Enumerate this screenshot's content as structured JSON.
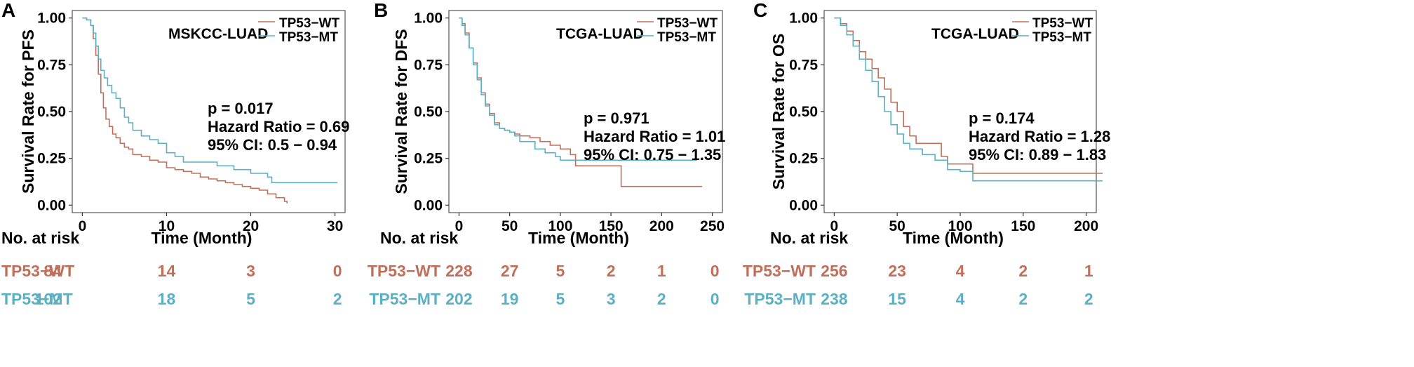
{
  "colors": {
    "wt": "#c0705a",
    "mt": "#5bb0c4",
    "frame": "#555555"
  },
  "chart_data": [
    {
      "type": "line",
      "panel": "A",
      "title": "MSKCC-LUAD",
      "xlabel": "Time (Month)",
      "ylabel": "Survival Rate for PFS",
      "xlim": [
        0,
        30
      ],
      "ylim": [
        0,
        1
      ],
      "xticks": [
        0,
        10,
        20,
        30
      ],
      "yticks": [
        "0.00",
        "0.25",
        "0.50",
        "0.75",
        "1.00"
      ],
      "legend": [
        "TP53−WT",
        "TP53−MT"
      ],
      "annotations": [
        "p = 0.017",
        "Hazard Ratio = 0.69",
        "95% CI: 0.5 − 0.94"
      ],
      "series": [
        {
          "name": "TP53−WT",
          "x": [
            0,
            0.5,
            1,
            1.3,
            1.6,
            1.9,
            2.2,
            2.5,
            2.8,
            3.2,
            3.6,
            4,
            4.5,
            5,
            5.5,
            6,
            7,
            8,
            9,
            10,
            11,
            12,
            13,
            14,
            15,
            16,
            17,
            18,
            19,
            20,
            21,
            22,
            23,
            24,
            24.3
          ],
          "y": [
            1,
            0.99,
            0.96,
            0.89,
            0.8,
            0.7,
            0.6,
            0.52,
            0.46,
            0.42,
            0.38,
            0.36,
            0.33,
            0.31,
            0.3,
            0.27,
            0.26,
            0.24,
            0.23,
            0.2,
            0.19,
            0.18,
            0.17,
            0.15,
            0.14,
            0.13,
            0.12,
            0.11,
            0.1,
            0.09,
            0.08,
            0.06,
            0.04,
            0.02,
            0.01
          ]
        },
        {
          "name": "TP53−MT",
          "x": [
            0,
            0.5,
            1,
            1.3,
            1.6,
            1.9,
            2.2,
            2.6,
            3,
            3.5,
            4,
            4.5,
            5,
            5.5,
            6,
            7,
            8,
            9,
            10,
            11,
            12,
            14,
            16,
            18,
            20,
            22,
            22.5,
            30.3
          ],
          "y": [
            1,
            0.99,
            0.96,
            0.92,
            0.85,
            0.78,
            0.72,
            0.68,
            0.64,
            0.6,
            0.57,
            0.52,
            0.47,
            0.44,
            0.4,
            0.37,
            0.35,
            0.33,
            0.28,
            0.26,
            0.23,
            0.23,
            0.21,
            0.19,
            0.17,
            0.15,
            0.12,
            0.12
          ]
        }
      ],
      "risk_table": {
        "header": "No. at risk",
        "times": [
          0,
          10,
          20,
          30
        ],
        "rows": [
          {
            "label": "TP53−WT",
            "values": [
              "84",
              "14",
              "3",
              "0"
            ]
          },
          {
            "label": "TP53−MT",
            "values": [
              "102",
              "18",
              "5",
              "2"
            ]
          }
        ]
      }
    },
    {
      "type": "line",
      "panel": "B",
      "title": "TCGA-LUAD",
      "xlabel": "Time (Month)",
      "ylabel": "Survival Rate for DFS",
      "xlim": [
        0,
        250
      ],
      "ylim": [
        0,
        1
      ],
      "xticks": [
        0,
        50,
        100,
        150,
        200,
        250
      ],
      "yticks": [
        "0.00",
        "0.25",
        "0.50",
        "0.75",
        "1.00"
      ],
      "legend": [
        "TP53−WT",
        "TP53−MT"
      ],
      "annotations": [
        "p = 0.971",
        "Hazard Ratio = 1.01",
        "95% CI: 0.75 − 1.35"
      ],
      "series": [
        {
          "name": "TP53−WT",
          "x": [
            0,
            3,
            6,
            10,
            14,
            18,
            22,
            26,
            30,
            35,
            40,
            45,
            50,
            55,
            60,
            70,
            80,
            90,
            100,
            110,
            115,
            160,
            165,
            240
          ],
          "y": [
            1,
            0.97,
            0.92,
            0.84,
            0.76,
            0.68,
            0.6,
            0.54,
            0.49,
            0.44,
            0.41,
            0.4,
            0.39,
            0.38,
            0.37,
            0.36,
            0.34,
            0.32,
            0.3,
            0.27,
            0.21,
            0.1,
            0.1,
            0.1
          ]
        },
        {
          "name": "TP53−MT",
          "x": [
            0,
            3,
            6,
            10,
            14,
            18,
            22,
            26,
            30,
            35,
            40,
            45,
            50,
            55,
            60,
            65,
            75,
            85,
            95,
            100,
            110,
            120,
            235
          ],
          "y": [
            1,
            0.96,
            0.91,
            0.84,
            0.75,
            0.67,
            0.59,
            0.53,
            0.48,
            0.43,
            0.41,
            0.4,
            0.39,
            0.37,
            0.34,
            0.34,
            0.3,
            0.28,
            0.26,
            0.24,
            0.24,
            0.24,
            0.24
          ]
        }
      ],
      "risk_table": {
        "header": "No. at risk",
        "times": [
          0,
          50,
          100,
          150,
          200,
          250
        ],
        "rows": [
          {
            "label": "TP53−WT",
            "values": [
              "228",
              "27",
              "5",
              "2",
              "1",
              "0"
            ]
          },
          {
            "label": "TP53−MT",
            "values": [
              "202",
              "19",
              "5",
              "3",
              "2",
              "0"
            ]
          }
        ]
      }
    },
    {
      "type": "line",
      "panel": "C",
      "title": "TCGA-LUAD",
      "xlabel": "Time (Month)",
      "ylabel": "Survival Rate for OS",
      "xlim": [
        0,
        200
      ],
      "ylim": [
        0,
        1
      ],
      "xticks": [
        0,
        50,
        100,
        150,
        200
      ],
      "yticks": [
        "0.00",
        "0.25",
        "0.50",
        "0.75",
        "1.00"
      ],
      "legend": [
        "TP53−WT",
        "TP53−MT"
      ],
      "annotations": [
        "p = 0.174",
        "Hazard Ratio = 1.28",
        "95% CI: 0.89 − 1.83"
      ],
      "series": [
        {
          "name": "TP53−WT",
          "x": [
            0,
            5,
            10,
            15,
            20,
            25,
            30,
            35,
            40,
            45,
            50,
            55,
            60,
            65,
            75,
            85,
            90,
            110,
            120,
            213
          ],
          "y": [
            1,
            0.97,
            0.93,
            0.88,
            0.82,
            0.78,
            0.73,
            0.68,
            0.62,
            0.55,
            0.5,
            0.42,
            0.37,
            0.33,
            0.33,
            0.26,
            0.22,
            0.17,
            0.17,
            0.17
          ]
        },
        {
          "name": "TP53−MT",
          "x": [
            0,
            5,
            10,
            15,
            20,
            25,
            30,
            35,
            40,
            45,
            50,
            55,
            60,
            70,
            80,
            90,
            100,
            110,
            120,
            213
          ],
          "y": [
            1,
            0.96,
            0.91,
            0.85,
            0.78,
            0.72,
            0.66,
            0.58,
            0.5,
            0.43,
            0.38,
            0.33,
            0.3,
            0.27,
            0.24,
            0.19,
            0.18,
            0.13,
            0.13,
            0.13
          ]
        }
      ],
      "risk_table": {
        "header": "No. at risk",
        "times": [
          0,
          50,
          100,
          150,
          200
        ],
        "rows": [
          {
            "label": "TP53−WT",
            "values": [
              "256",
              "23",
              "4",
              "2",
              "1"
            ]
          },
          {
            "label": "TP53−MT",
            "values": [
              "238",
              "15",
              "4",
              "2",
              "2"
            ]
          }
        ]
      }
    }
  ]
}
